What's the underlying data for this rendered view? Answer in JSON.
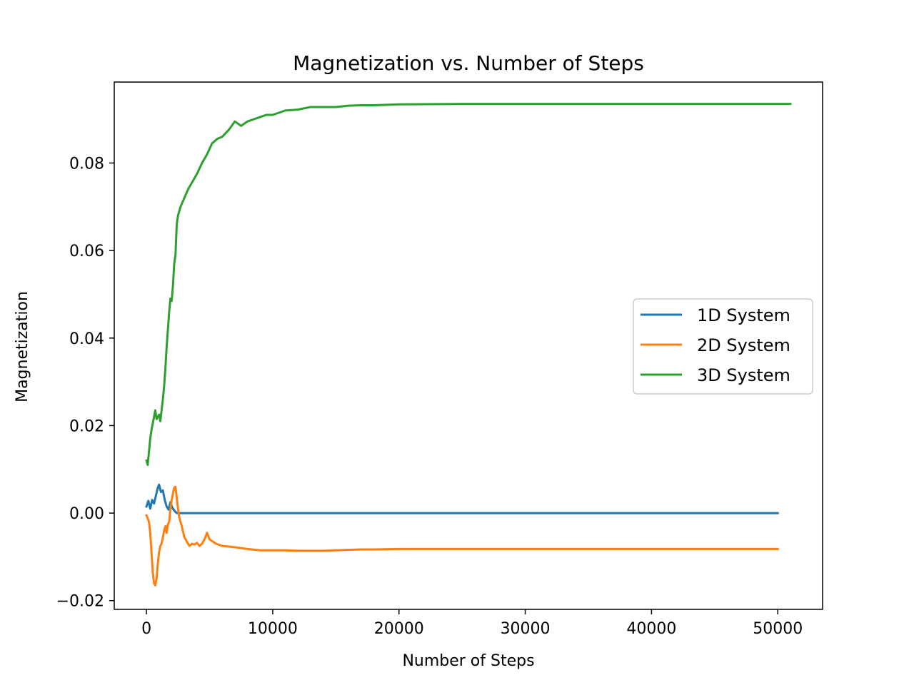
{
  "chart_data": {
    "type": "line",
    "title": "Magnetization vs. Number of Steps",
    "xlabel": "Number of Steps",
    "ylabel": "Magnetization",
    "xlim": [
      -2550,
      53550
    ],
    "ylim": [
      -0.022,
      0.0985
    ],
    "xticks": [
      {
        "value": 0,
        "label": "0"
      },
      {
        "value": 10000,
        "label": "10000"
      },
      {
        "value": 20000,
        "label": "20000"
      },
      {
        "value": 30000,
        "label": "30000"
      },
      {
        "value": 40000,
        "label": "40000"
      },
      {
        "value": 50000,
        "label": "50000"
      }
    ],
    "yticks": [
      {
        "value": -0.02,
        "label": "−0.02"
      },
      {
        "value": 0.0,
        "label": "0.00"
      },
      {
        "value": 0.02,
        "label": "0.02"
      },
      {
        "value": 0.04,
        "label": "0.04"
      },
      {
        "value": 0.06,
        "label": "0.06"
      },
      {
        "value": 0.08,
        "label": "0.08"
      }
    ],
    "grid": false,
    "legend_position": "center-right",
    "series": [
      {
        "name": "1D System",
        "color": "#1f77b4",
        "x": [
          0,
          150,
          300,
          450,
          600,
          750,
          900,
          1000,
          1150,
          1300,
          1450,
          1600,
          1750,
          1900,
          2050,
          2200,
          2400,
          5000,
          10000,
          20000,
          30000,
          40000,
          50000
        ],
        "y": [
          0.0015,
          0.0028,
          0.001,
          0.003,
          0.0022,
          0.004,
          0.0058,
          0.0065,
          0.0048,
          0.0052,
          0.003,
          0.0015,
          0.0008,
          0.0025,
          0.0012,
          0.0006,
          0.0,
          0.0,
          0.0,
          0.0,
          0.0,
          0.0,
          0.0
        ]
      },
      {
        "name": "2D System",
        "color": "#ff7f0e",
        "x": [
          0,
          100,
          200,
          300,
          400,
          500,
          600,
          700,
          800,
          900,
          1000,
          1100,
          1200,
          1300,
          1400,
          1500,
          1600,
          1700,
          1800,
          1900,
          2000,
          2100,
          2200,
          2300,
          2400,
          2500,
          2600,
          2800,
          3000,
          3200,
          3400,
          3600,
          3800,
          4000,
          4200,
          4400,
          4600,
          4800,
          5000,
          5500,
          6000,
          7000,
          8000,
          9000,
          10000,
          11000,
          12000,
          13000,
          14000,
          15000,
          16000,
          17000,
          18000,
          20000,
          30000,
          40000,
          50000
        ],
        "y": [
          -0.0005,
          -0.0012,
          -0.002,
          -0.0045,
          -0.009,
          -0.0135,
          -0.016,
          -0.0165,
          -0.015,
          -0.0115,
          -0.009,
          -0.0075,
          -0.007,
          -0.0055,
          -0.004,
          -0.003,
          -0.0045,
          -0.0025,
          -0.002,
          0.001,
          0.003,
          0.0045,
          0.0058,
          0.006,
          0.0035,
          0.001,
          -0.001,
          -0.003,
          -0.0055,
          -0.0065,
          -0.0075,
          -0.007,
          -0.0072,
          -0.0068,
          -0.0075,
          -0.007,
          -0.006,
          -0.0045,
          -0.006,
          -0.007,
          -0.0075,
          -0.0078,
          -0.0082,
          -0.0085,
          -0.0085,
          -0.0085,
          -0.0086,
          -0.0086,
          -0.0086,
          -0.0085,
          -0.0084,
          -0.0083,
          -0.0083,
          -0.0082,
          -0.0082,
          -0.0082,
          -0.0082
        ]
      },
      {
        "name": "3D System",
        "color": "#2ca02c",
        "x": [
          0,
          100,
          200,
          300,
          400,
          500,
          600,
          700,
          800,
          900,
          1000,
          1100,
          1200,
          1300,
          1400,
          1500,
          1600,
          1700,
          1800,
          1900,
          2000,
          2100,
          2200,
          2300,
          2400,
          2500,
          2700,
          3000,
          3300,
          3600,
          4000,
          4400,
          4800,
          5200,
          5600,
          6000,
          6500,
          7000,
          7500,
          8000,
          8500,
          9000,
          9500,
          10000,
          11000,
          12000,
          13000,
          14000,
          15000,
          16000,
          17000,
          18000,
          19000,
          20000,
          25000,
          30000,
          40000,
          51000
        ],
        "y": [
          0.012,
          0.011,
          0.014,
          0.017,
          0.019,
          0.0205,
          0.022,
          0.0235,
          0.0215,
          0.022,
          0.0225,
          0.021,
          0.0235,
          0.026,
          0.029,
          0.033,
          0.038,
          0.042,
          0.046,
          0.049,
          0.0485,
          0.052,
          0.057,
          0.059,
          0.066,
          0.068,
          0.07,
          0.072,
          0.074,
          0.0755,
          0.0775,
          0.08,
          0.082,
          0.0845,
          0.0855,
          0.086,
          0.0875,
          0.0895,
          0.0885,
          0.0895,
          0.09,
          0.0905,
          0.091,
          0.091,
          0.092,
          0.0922,
          0.0928,
          0.0928,
          0.0928,
          0.0931,
          0.0932,
          0.0932,
          0.0933,
          0.0934,
          0.0935,
          0.0935,
          0.0935,
          0.0935
        ]
      }
    ]
  }
}
